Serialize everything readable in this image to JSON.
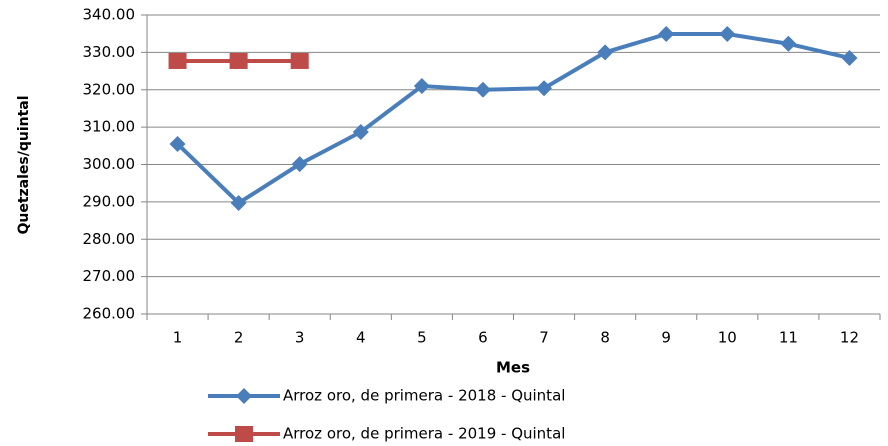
{
  "chart_data": {
    "type": "line",
    "x_label": "Mes",
    "y_label": "Quetzales/quintal",
    "categories": [
      "1",
      "2",
      "3",
      "4",
      "5",
      "6",
      "7",
      "8",
      "9",
      "10",
      "11",
      "12"
    ],
    "series": [
      {
        "name": "Arroz oro, de primera - 2018 - Quintal",
        "color": "#4a7ebb",
        "marker": "diamond",
        "values": [
          305.5,
          289.7,
          300.1,
          308.7,
          321.0,
          320.0,
          320.4,
          330.0,
          334.9,
          334.9,
          332.3,
          328.5
        ]
      },
      {
        "name": "Arroz oro, de primera - 2019 - Quintal",
        "color": "#be4b48",
        "marker": "square",
        "values": [
          327.7,
          327.7,
          327.7,
          null,
          null,
          null,
          null,
          null,
          null,
          null,
          null,
          null
        ]
      }
    ],
    "ylim": [
      260,
      340
    ],
    "yticks": [
      {
        "value": 260,
        "label": "260.00"
      },
      {
        "value": 270,
        "label": "270.00"
      },
      {
        "value": 280,
        "label": "280.00"
      },
      {
        "value": 290,
        "label": "290.00"
      },
      {
        "value": 300,
        "label": "300.00"
      },
      {
        "value": 310,
        "label": "310.00"
      },
      {
        "value": 320,
        "label": "320.00"
      },
      {
        "value": 330,
        "label": "330.00"
      },
      {
        "value": 340,
        "label": "340.00"
      }
    ],
    "grid": true
  }
}
